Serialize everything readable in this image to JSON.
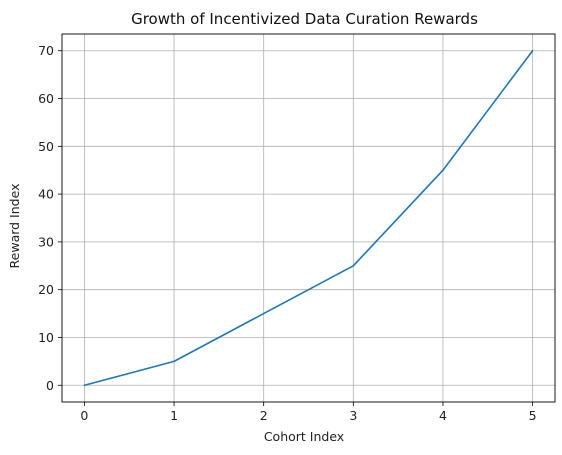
{
  "chart_data": {
    "type": "line",
    "title": "Growth of Incentivized Data Curation Rewards",
    "xlabel": "Cohort Index",
    "ylabel": "Reward Index",
    "x": [
      0,
      1,
      2,
      3,
      4,
      5
    ],
    "series": [
      {
        "values": [
          0,
          5,
          15,
          25,
          45,
          70
        ],
        "color": "#1f77b4"
      }
    ],
    "xlim": [
      -0.25,
      5.25
    ],
    "ylim": [
      -3.5,
      73.5
    ],
    "xticks": [
      0,
      1,
      2,
      3,
      4,
      5
    ],
    "yticks": [
      0,
      10,
      20,
      30,
      40,
      50,
      60,
      70
    ],
    "grid": true,
    "grid_color": "#b0b0b0"
  }
}
